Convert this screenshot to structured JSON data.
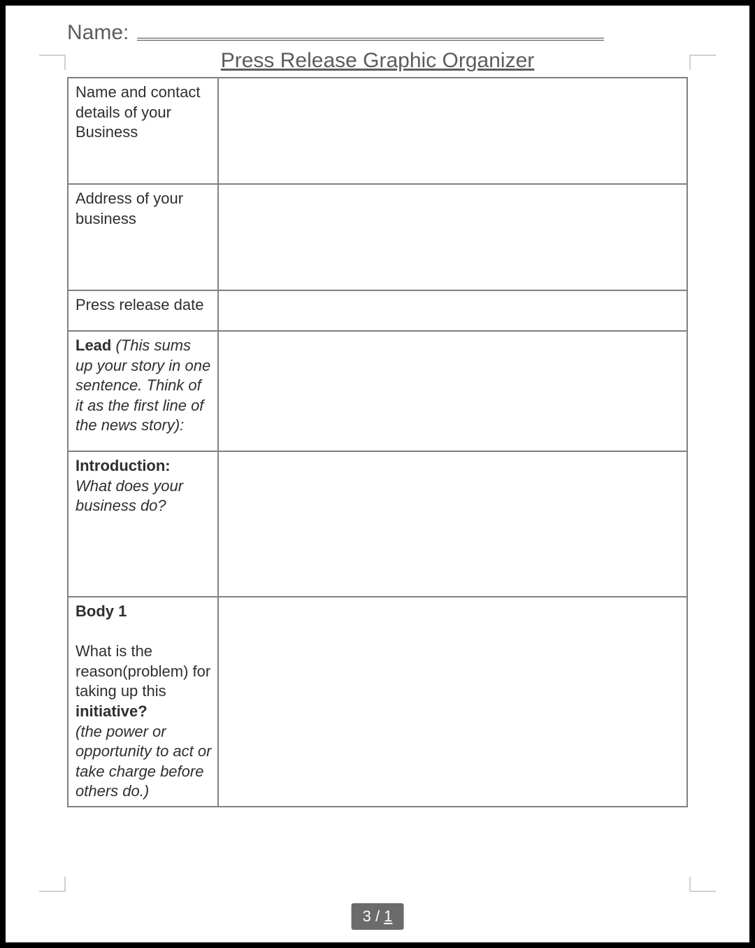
{
  "header": {
    "name_label": "Name:",
    "title": "Press Release Graphic Organizer"
  },
  "rows": {
    "r1_label": "Name and contact details of your Business",
    "r2_label": "Address of your business",
    "r3_label": "Press release date",
    "r4_bold": "Lead",
    "r4_italic": " (This sums up your story in one sentence. Think of it as the first line of the news story):",
    "r5_bold": "Introduction:",
    "r5_italic": "What does your business do?",
    "r6_bold": "Body 1",
    "r6_plain_a": "What is the reason(problem) for taking up this ",
    "r6_bold2": "initiative?",
    "r6_italic": " (the power or opportunity to act or take charge before others do.)"
  },
  "pager": {
    "current": "3",
    "sep": " / ",
    "total": "1"
  },
  "colors": {
    "frame": "#000000",
    "text": "#2f2f2f",
    "muted": "#5c5c5c",
    "border": "#808080",
    "crop": "#d0d0d0",
    "pill_bg": "#6b6b6b",
    "pill_fg": "#ffffff"
  }
}
